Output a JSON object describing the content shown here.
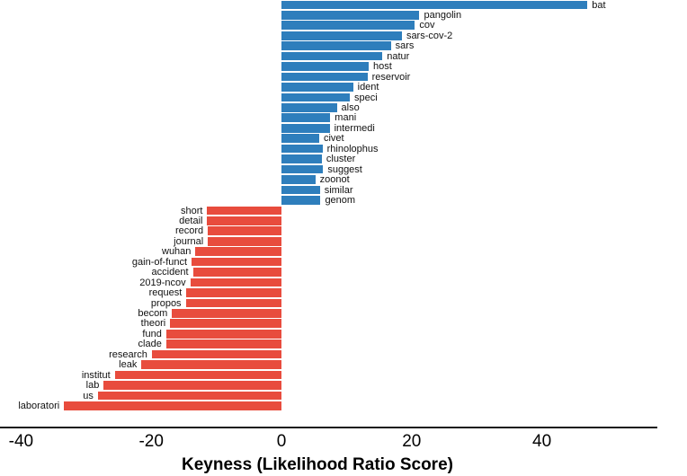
{
  "chart_data": {
    "type": "bar",
    "orientation": "horizontal",
    "title": "",
    "xlabel": "Keyness (Likelihood Ratio Score)",
    "ylabel": "",
    "xlim": [
      -44,
      58
    ],
    "xticks": [
      -40,
      -20,
      0,
      20,
      40
    ],
    "grid": false,
    "legend": null,
    "positive_color": "#2e7ebc",
    "negative_color": "#e84c3d",
    "axis_line_color": "#1a1a1a",
    "text_color": "#000000",
    "bars": [
      {
        "term": "bat",
        "value": 47.0
      },
      {
        "term": "pangolin",
        "value": 21.2
      },
      {
        "term": "cov",
        "value": 20.5
      },
      {
        "term": "sars-cov-2",
        "value": 18.5
      },
      {
        "term": "sars",
        "value": 16.8
      },
      {
        "term": "natur",
        "value": 15.5
      },
      {
        "term": "host",
        "value": 13.4
      },
      {
        "term": "reservoir",
        "value": 13.2
      },
      {
        "term": "ident",
        "value": 11.0
      },
      {
        "term": "speci",
        "value": 10.5
      },
      {
        "term": "also",
        "value": 8.5
      },
      {
        "term": "mani",
        "value": 7.5
      },
      {
        "term": "intermedi",
        "value": 7.4
      },
      {
        "term": "civet",
        "value": 5.8
      },
      {
        "term": "rhinolophus",
        "value": 6.3
      },
      {
        "term": "cluster",
        "value": 6.2
      },
      {
        "term": "suggest",
        "value": 6.4
      },
      {
        "term": "zoonot",
        "value": 5.2
      },
      {
        "term": "similar",
        "value": 5.9
      },
      {
        "term": "genom",
        "value": 6.0
      },
      {
        "term": "short",
        "value": -11.4
      },
      {
        "term": "detail",
        "value": -11.4
      },
      {
        "term": "record",
        "value": -11.3
      },
      {
        "term": "journal",
        "value": -11.3
      },
      {
        "term": "wuhan",
        "value": -13.2
      },
      {
        "term": "gain-of-funct",
        "value": -13.8
      },
      {
        "term": "accident",
        "value": -13.6
      },
      {
        "term": "2019-ncov",
        "value": -14.0
      },
      {
        "term": "request",
        "value": -14.6
      },
      {
        "term": "propos",
        "value": -14.7
      },
      {
        "term": "becom",
        "value": -16.8
      },
      {
        "term": "theori",
        "value": -17.1
      },
      {
        "term": "fund",
        "value": -17.7
      },
      {
        "term": "clade",
        "value": -17.7
      },
      {
        "term": "research",
        "value": -19.9
      },
      {
        "term": "leak",
        "value": -21.5
      },
      {
        "term": "institut",
        "value": -25.6
      },
      {
        "term": "lab",
        "value": -27.3
      },
      {
        "term": "us",
        "value": -28.2
      },
      {
        "term": "laboratori",
        "value": -33.4
      }
    ]
  }
}
